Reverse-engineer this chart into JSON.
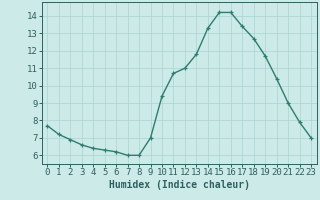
{
  "x": [
    0,
    1,
    2,
    3,
    4,
    5,
    6,
    7,
    8,
    9,
    10,
    11,
    12,
    13,
    14,
    15,
    16,
    17,
    18,
    19,
    20,
    21,
    22,
    23
  ],
  "y": [
    7.7,
    7.2,
    6.9,
    6.6,
    6.4,
    6.3,
    6.2,
    6.0,
    6.0,
    7.0,
    9.4,
    10.7,
    11.0,
    11.8,
    13.3,
    14.2,
    14.2,
    13.4,
    12.7,
    11.7,
    10.4,
    9.0,
    7.9,
    7.0
  ],
  "xlabel": "Humidex (Indice chaleur)",
  "line_color": "#2e7d6e",
  "marker": "+",
  "bg_color": "#cceae8",
  "grid_color": "#aad4d0",
  "axis_color": "#2e6060",
  "tick_label_color": "#2e6060",
  "xlabel_color": "#2e6060",
  "ylim": [
    5.5,
    14.8
  ],
  "xlim": [
    -0.5,
    23.5
  ],
  "yticks": [
    6,
    7,
    8,
    9,
    10,
    11,
    12,
    13,
    14
  ],
  "xticks": [
    0,
    1,
    2,
    3,
    4,
    5,
    6,
    7,
    8,
    9,
    10,
    11,
    12,
    13,
    14,
    15,
    16,
    17,
    18,
    19,
    20,
    21,
    22,
    23
  ],
  "xlabel_fontsize": 7,
  "tick_fontsize": 6.5,
  "linewidth": 1.0,
  "markersize": 3.5,
  "markeredgewidth": 0.9
}
